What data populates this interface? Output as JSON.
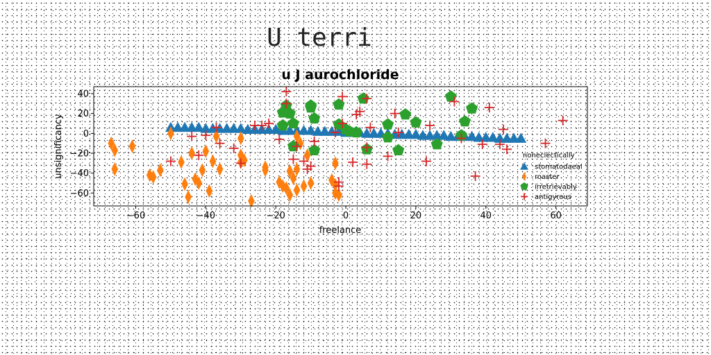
{
  "page_title": "U terri",
  "chart_data": {
    "type": "scatter",
    "title": "u J aurochloride",
    "xlabel": "freelance",
    "ylabel": "unsignificancy",
    "xlim": [
      -72,
      69
    ],
    "ylim": [
      -73,
      47
    ],
    "xticks": [
      -60,
      -40,
      -20,
      0,
      20,
      40,
      60
    ],
    "yticks": [
      40,
      20,
      0,
      -20,
      -40,
      -60
    ],
    "grid": false,
    "legend": {
      "title": "noneclectically",
      "placement": "lower-right"
    },
    "series": [
      {
        "name": "stomatodaeal",
        "marker": "triangle",
        "color": "#1f77b4",
        "points": [
          [
            -50,
            6
          ],
          [
            -48,
            6
          ],
          [
            -46,
            6
          ],
          [
            -44,
            6
          ],
          [
            -42,
            6
          ],
          [
            -40,
            5
          ],
          [
            -38,
            5
          ],
          [
            -36,
            5
          ],
          [
            -34,
            5
          ],
          [
            -32,
            5
          ],
          [
            -30,
            5
          ],
          [
            -28,
            4
          ],
          [
            -26,
            4
          ],
          [
            -24,
            4
          ],
          [
            -22,
            4
          ],
          [
            -20,
            4
          ],
          [
            -18,
            3
          ],
          [
            -16,
            3
          ],
          [
            -14,
            3
          ],
          [
            -12,
            3
          ],
          [
            -10,
            3
          ],
          [
            -8,
            2
          ],
          [
            -6,
            2
          ],
          [
            -4,
            2
          ],
          [
            -2,
            2
          ],
          [
            0,
            1
          ],
          [
            2,
            1
          ],
          [
            4,
            1
          ],
          [
            6,
            0
          ],
          [
            8,
            0
          ],
          [
            10,
            0
          ],
          [
            12,
            0
          ],
          [
            14,
            -1
          ],
          [
            16,
            -1
          ],
          [
            18,
            -1
          ],
          [
            20,
            -1
          ],
          [
            22,
            -2
          ],
          [
            24,
            -2
          ],
          [
            26,
            -2
          ],
          [
            28,
            -2
          ],
          [
            30,
            -3
          ],
          [
            32,
            -3
          ],
          [
            34,
            -3
          ],
          [
            36,
            -3
          ],
          [
            38,
            -4
          ],
          [
            40,
            -4
          ],
          [
            42,
            -4
          ],
          [
            44,
            -5
          ],
          [
            46,
            -5
          ],
          [
            48,
            -5
          ],
          [
            50,
            -5
          ]
        ]
      },
      {
        "name": "roaster",
        "marker": "diamond",
        "color": "#ff7f0e",
        "points": [
          [
            -67,
            -10
          ],
          [
            -66,
            -17
          ],
          [
            -66,
            -36
          ],
          [
            -61,
            -13
          ],
          [
            -56,
            -42
          ],
          [
            -55,
            -44
          ],
          [
            -53,
            -37
          ],
          [
            -50,
            0
          ],
          [
            -47,
            -29
          ],
          [
            -46,
            -51
          ],
          [
            -45,
            -64
          ],
          [
            -44,
            -20
          ],
          [
            -43,
            -46
          ],
          [
            -42,
            -50
          ],
          [
            -41,
            -37
          ],
          [
            -40,
            -18
          ],
          [
            -39,
            -58
          ],
          [
            -38,
            -28
          ],
          [
            -37,
            -3
          ],
          [
            -36,
            -36
          ],
          [
            -30,
            -22
          ],
          [
            -30,
            -29
          ],
          [
            -30,
            -5
          ],
          [
            -29,
            -27
          ],
          [
            -27,
            -68
          ],
          [
            -23,
            -37
          ],
          [
            -23,
            -34
          ],
          [
            -19,
            -49
          ],
          [
            -18,
            -53
          ],
          [
            -17,
            -55
          ],
          [
            -16,
            -62
          ],
          [
            -16,
            -38
          ],
          [
            -15,
            -45
          ],
          [
            -14,
            -57
          ],
          [
            -14,
            -36
          ],
          [
            -14,
            -3
          ],
          [
            -13,
            -10
          ],
          [
            -12,
            -53
          ],
          [
            -11,
            -22
          ],
          [
            -10,
            -50
          ],
          [
            -4,
            -47
          ],
          [
            -3,
            -52
          ],
          [
            -3,
            -60
          ],
          [
            -3,
            -30
          ],
          [
            -2,
            -62
          ]
        ]
      },
      {
        "name": "irretrievably",
        "marker": "pentagon",
        "color": "#2ca02c",
        "points": [
          [
            -18,
            21
          ],
          [
            -18,
            8
          ],
          [
            -17,
            28
          ],
          [
            -16,
            20
          ],
          [
            -15,
            -13
          ],
          [
            -15,
            10
          ],
          [
            -10,
            26
          ],
          [
            -10,
            28
          ],
          [
            -9,
            -17
          ],
          [
            -9,
            15
          ],
          [
            -2,
            29
          ],
          [
            -2,
            9
          ],
          [
            0,
            4
          ],
          [
            1,
            2
          ],
          [
            3,
            1
          ],
          [
            5,
            35
          ],
          [
            6,
            -16
          ],
          [
            12,
            -4
          ],
          [
            12,
            9
          ],
          [
            15,
            -17
          ],
          [
            17,
            19
          ],
          [
            20,
            11
          ],
          [
            26,
            -11
          ],
          [
            30,
            37
          ],
          [
            33,
            -2
          ],
          [
            34,
            12
          ],
          [
            36,
            25
          ]
        ]
      },
      {
        "name": "antigyrous",
        "marker": "plus",
        "color": "#d62728",
        "points": [
          [
            -50,
            -28
          ],
          [
            -44,
            -3
          ],
          [
            -42,
            -22
          ],
          [
            -40,
            -2
          ],
          [
            -37,
            6
          ],
          [
            -36,
            -10
          ],
          [
            -32,
            -15
          ],
          [
            -30,
            -30
          ],
          [
            -26,
            8
          ],
          [
            -24,
            8
          ],
          [
            -22,
            10
          ],
          [
            -19,
            -6
          ],
          [
            -17,
            42
          ],
          [
            -17,
            30
          ],
          [
            -15,
            -26
          ],
          [
            -14,
            -13
          ],
          [
            -12,
            -28
          ],
          [
            -11,
            -36
          ],
          [
            -10,
            -33
          ],
          [
            -9,
            -8
          ],
          [
            -3,
            1
          ],
          [
            -2,
            -49
          ],
          [
            -2,
            -53
          ],
          [
            -1,
            10
          ],
          [
            -1,
            37
          ],
          [
            2,
            -29
          ],
          [
            3,
            19
          ],
          [
            4,
            22
          ],
          [
            6,
            -31
          ],
          [
            6,
            35
          ],
          [
            6,
            -14
          ],
          [
            7,
            6
          ],
          [
            12,
            -23
          ],
          [
            14,
            20
          ],
          [
            15,
            1
          ],
          [
            23,
            -28
          ],
          [
            24,
            8
          ],
          [
            31,
            32
          ],
          [
            33,
            -5
          ],
          [
            37,
            -43
          ],
          [
            39,
            -11
          ],
          [
            41,
            26
          ],
          [
            44,
            -11
          ],
          [
            45,
            4
          ],
          [
            46,
            -16
          ],
          [
            57,
            -10
          ],
          [
            62,
            13
          ]
        ]
      }
    ]
  }
}
